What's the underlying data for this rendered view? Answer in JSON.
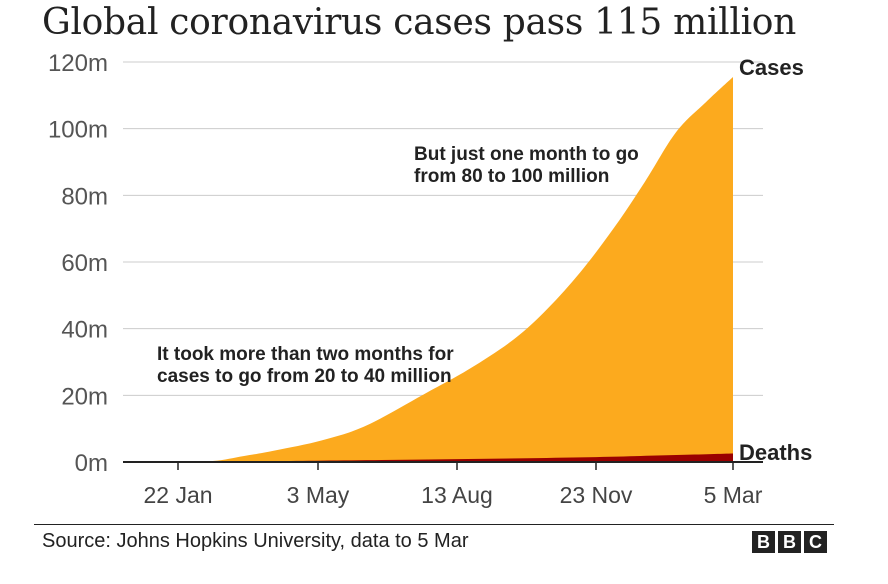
{
  "chart_data": {
    "type": "area",
    "title": "Global coronavirus cases pass 115 million",
    "xlabel": "",
    "ylabel": "",
    "x_ticks": [
      "22 Jan",
      "3 May",
      "13 Aug",
      "23 Nov",
      "5 Mar"
    ],
    "x_range": [
      "2020-01-22",
      "2021-03-05"
    ],
    "ylim": [
      0,
      120
    ],
    "y_ticks": [
      0,
      20,
      40,
      60,
      80,
      100,
      120
    ],
    "y_tick_labels": [
      "0m",
      "20m",
      "40m",
      "60m",
      "80m",
      "100m",
      "120m"
    ],
    "grid": true,
    "series": [
      {
        "name": "Cases",
        "color": "#fcaa1e",
        "x": [
          "2020-01-22",
          "2020-02-22",
          "2020-03-22",
          "2020-04-12",
          "2020-05-03",
          "2020-06-03",
          "2020-07-03",
          "2020-08-13",
          "2020-09-10",
          "2020-10-10",
          "2020-11-01",
          "2020-11-23",
          "2020-12-15",
          "2021-01-05",
          "2021-01-26",
          "2021-02-15",
          "2021-03-05"
        ],
        "values": [
          0,
          0.1,
          0.3,
          1.8,
          3.5,
          6.5,
          11,
          21,
          28,
          37,
          46,
          57,
          70,
          84,
          99,
          108,
          115.5
        ]
      },
      {
        "name": "Deaths",
        "color": "#990000",
        "x": [
          "2020-01-22",
          "2020-04-01",
          "2020-05-03",
          "2020-08-13",
          "2020-11-23",
          "2021-01-26",
          "2021-03-05"
        ],
        "values": [
          0,
          0.05,
          0.25,
          0.75,
          1.4,
          2.1,
          2.56
        ]
      }
    ],
    "annotations": [
      {
        "lines": [
          "But just one month to go",
          "from 80 to 100 million"
        ]
      },
      {
        "lines": [
          "It took more than two months for",
          "cases to go from 20 to 40 million"
        ]
      }
    ]
  },
  "source": "Source: Johns Hopkins University, data to 5 Mar",
  "logo_letters": [
    "B",
    "B",
    "C"
  ]
}
